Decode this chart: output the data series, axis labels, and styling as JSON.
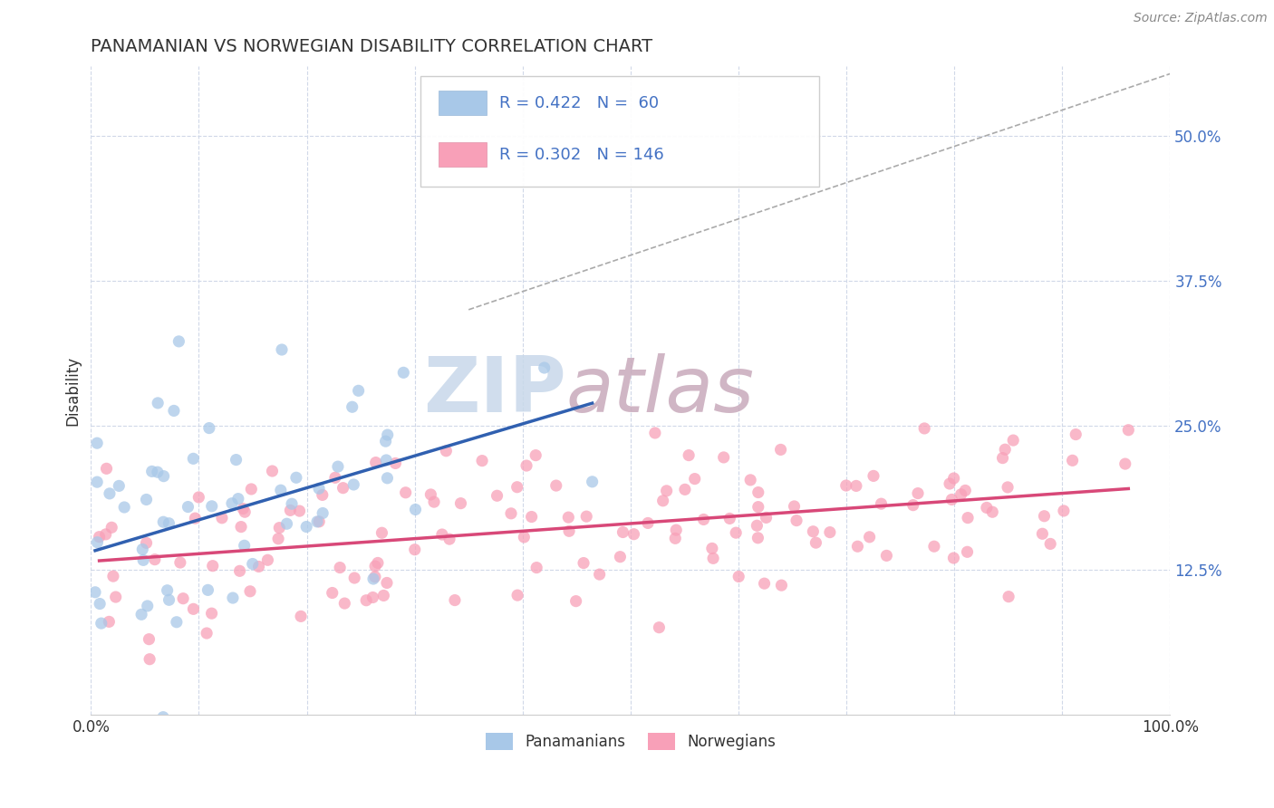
{
  "title": "PANAMANIAN VS NORWEGIAN DISABILITY CORRELATION CHART",
  "source": "Source: ZipAtlas.com",
  "ylabel": "Disability",
  "xlim": [
    0.0,
    1.0
  ],
  "ylim": [
    0.0,
    0.56
  ],
  "yticks": [
    0.125,
    0.25,
    0.375,
    0.5
  ],
  "ytick_labels": [
    "12.5%",
    "25.0%",
    "37.5%",
    "50.0%"
  ],
  "xticks": [
    0.0,
    0.1,
    0.2,
    0.3,
    0.4,
    0.5,
    0.6,
    0.7,
    0.8,
    0.9,
    1.0
  ],
  "xtick_labels": [
    "0.0%",
    "",
    "",
    "",
    "",
    "",
    "",
    "",
    "",
    "",
    "100.0%"
  ],
  "blue_color": "#a8c8e8",
  "blue_line_color": "#3060b0",
  "pink_color": "#f8a0b8",
  "pink_line_color": "#d84878",
  "dashed_color": "#aaaaaa",
  "legend_r_blue": "0.422",
  "legend_n_blue": "60",
  "legend_r_pink": "0.302",
  "legend_n_pink": "146",
  "legend_label_blue": "Panamanians",
  "legend_label_pink": "Norwegians",
  "watermark_zip": "ZIP",
  "watermark_atlas": "atlas",
  "title_color": "#333333",
  "title_fontsize": 14,
  "accent_color": "#4472c4",
  "seed": 7
}
